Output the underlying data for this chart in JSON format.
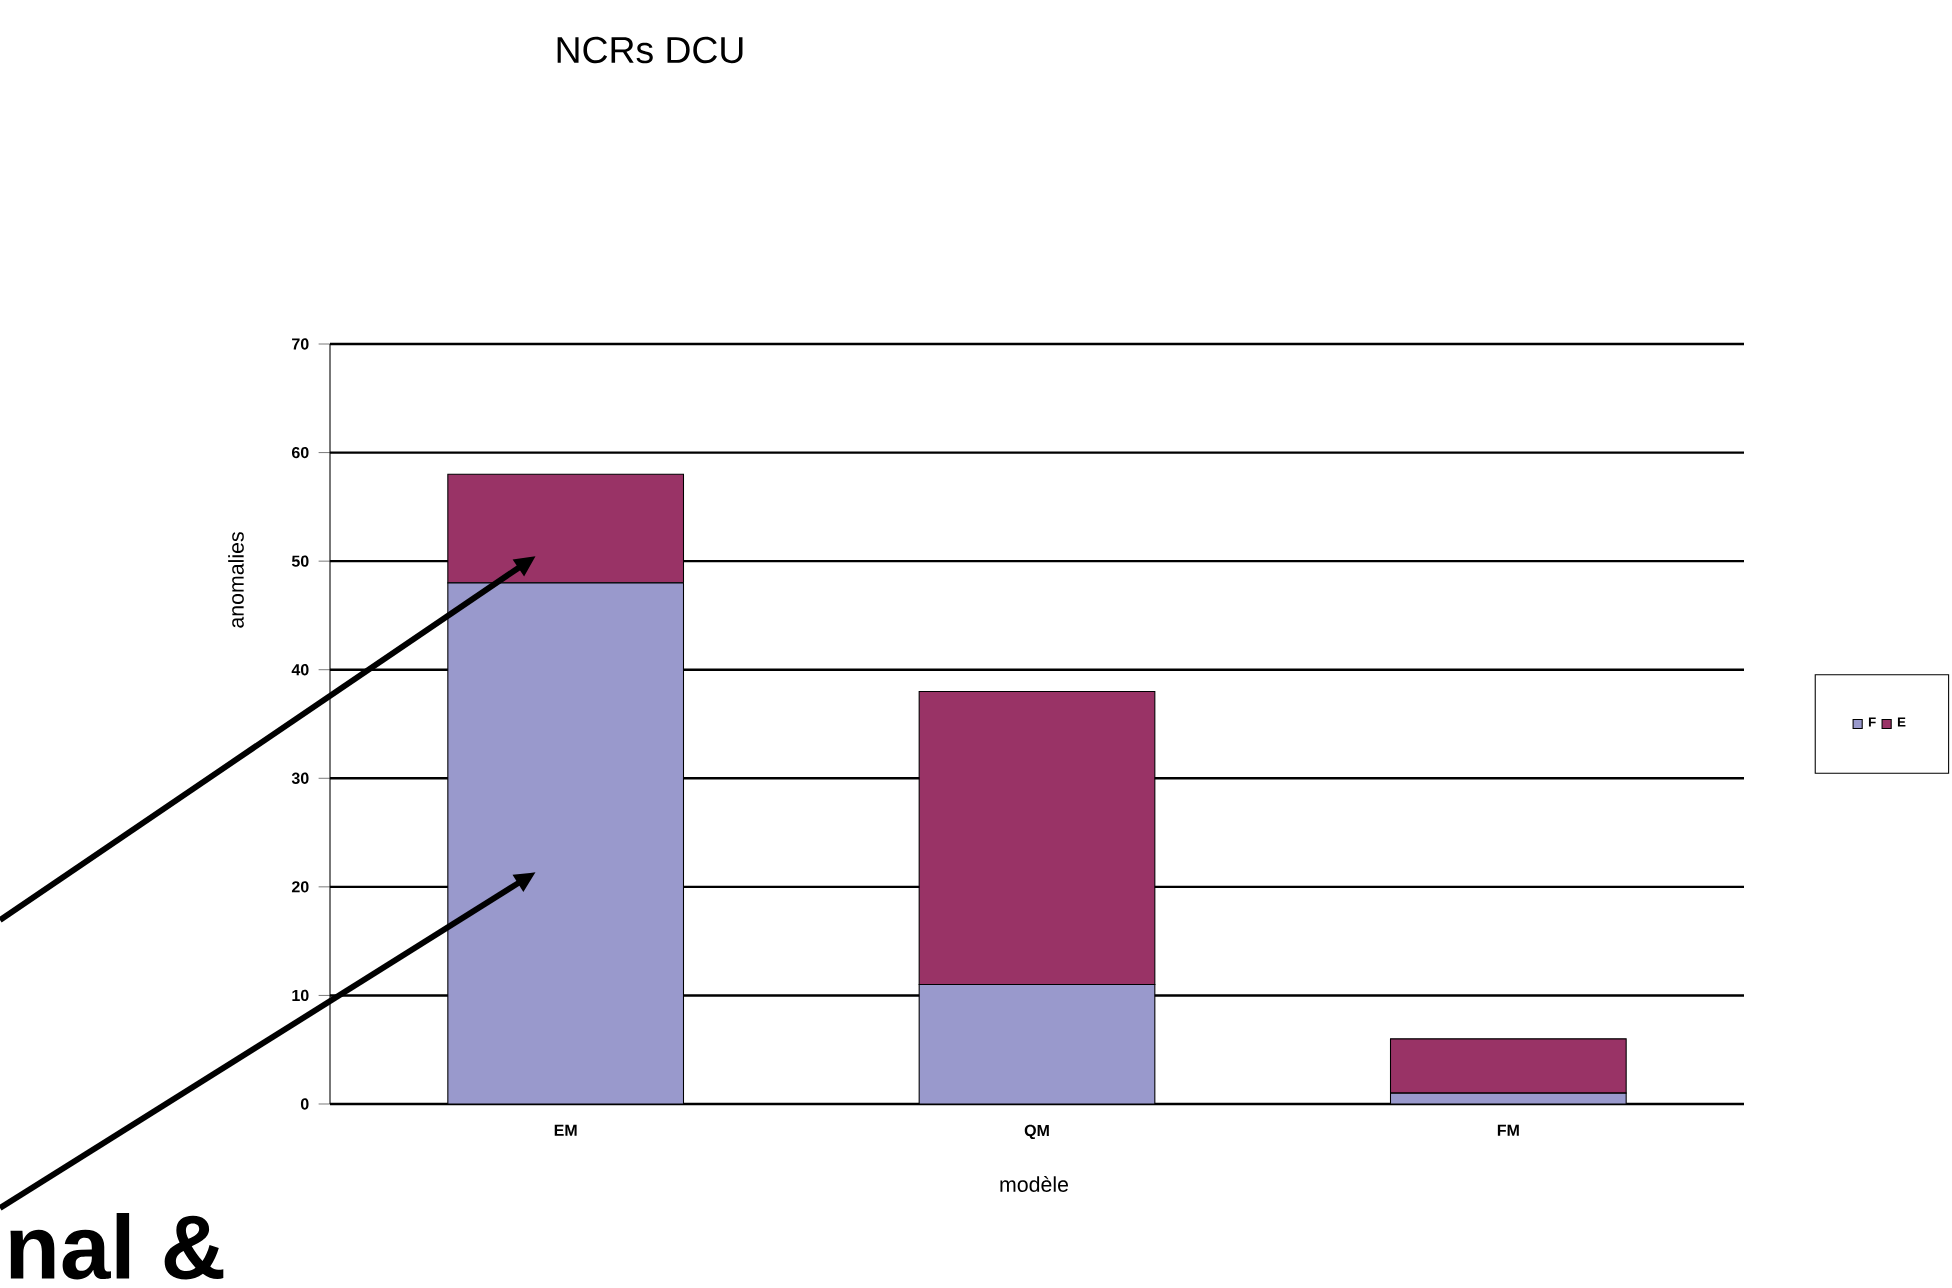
{
  "chart_data": {
    "type": "bar",
    "title": "NCRs DCU",
    "xlabel": "modèle",
    "ylabel": "anomalies",
    "categories": [
      "EM",
      "QM",
      "FM"
    ],
    "series": [
      {
        "name": "F",
        "color": "#9999cc",
        "values": [
          48,
          11,
          1
        ]
      },
      {
        "name": "E",
        "color": "#993366",
        "values": [
          10,
          27,
          5
        ]
      }
    ],
    "stacked": true,
    "ylim": [
      0,
      70
    ],
    "yticks": [
      0,
      10,
      20,
      30,
      40,
      50,
      60,
      70
    ],
    "grid": "y",
    "legend": "right",
    "annotations": [
      "nal &"
    ]
  }
}
